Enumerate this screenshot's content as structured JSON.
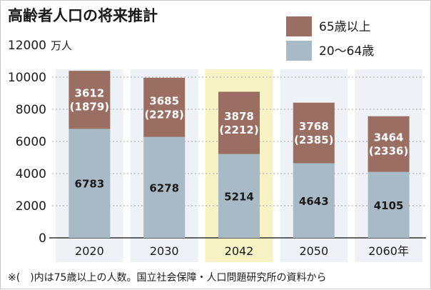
{
  "chart_data": {
    "type": "bar",
    "stacked": true,
    "title": "高齢者人口の将来推計",
    "unit_label": "万人",
    "categories": [
      "2020",
      "2030",
      "2042",
      "2050",
      "2060年"
    ],
    "highlight_category": "2042",
    "series": [
      {
        "name": "20〜64歳",
        "values": [
          6783,
          6278,
          5214,
          4643,
          4105
        ],
        "color": "#a7bac6"
      },
      {
        "name": "65歳以上",
        "values": [
          3612,
          3685,
          3878,
          3768,
          3464
        ],
        "sub_labels": [
          "(1879)",
          "(2278)",
          "(2212)",
          "(2385)",
          "(2336)"
        ],
        "color": "#9a6e62"
      }
    ],
    "y_ticks": [
      0,
      2000,
      4000,
      6000,
      8000,
      10000,
      12000
    ],
    "ylim": [
      0,
      12000
    ],
    "legend_position": "top-right",
    "note": "※(　)内は75歳以上の人数。国立社会保障・人口問題研究所の資料から"
  }
}
